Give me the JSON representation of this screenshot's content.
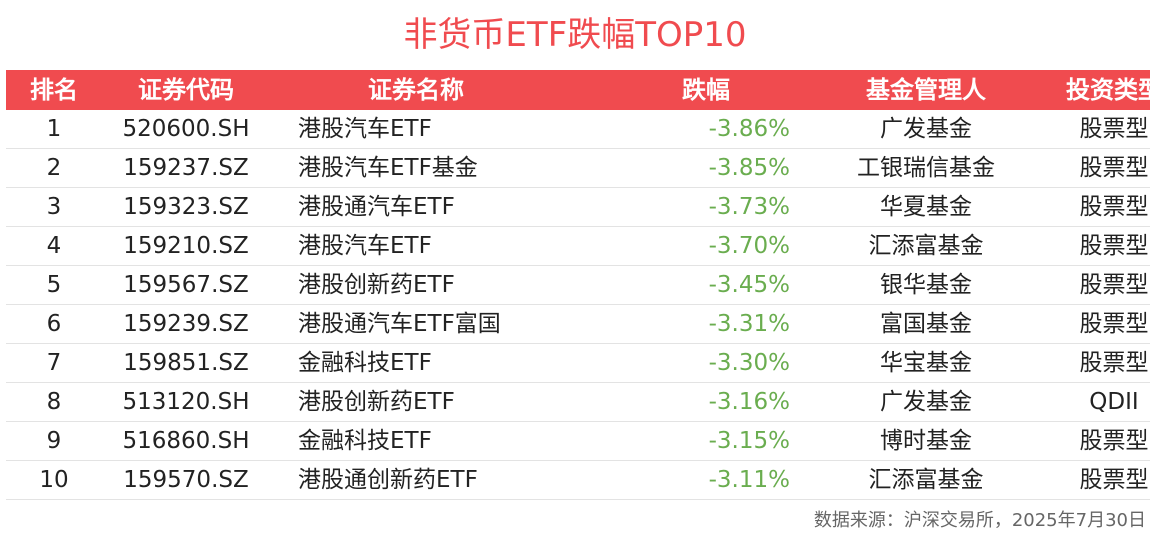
{
  "title": "非货币ETF跌幅TOP10",
  "headers": {
    "rank": "排名",
    "code": "证券代码",
    "name": "证券名称",
    "change": "跌幅",
    "manager": "基金管理人",
    "type": "投资类型"
  },
  "rows": [
    {
      "rank": "1",
      "code": "520600.SH",
      "name": "港股汽车ETF",
      "change": "-3.86%",
      "manager": "广发基金",
      "type": "股票型"
    },
    {
      "rank": "2",
      "code": "159237.SZ",
      "name": "港股汽车ETF基金",
      "change": "-3.85%",
      "manager": "工银瑞信基金",
      "type": "股票型"
    },
    {
      "rank": "3",
      "code": "159323.SZ",
      "name": "港股通汽车ETF",
      "change": "-3.73%",
      "manager": "华夏基金",
      "type": "股票型"
    },
    {
      "rank": "4",
      "code": "159210.SZ",
      "name": "港股汽车ETF",
      "change": "-3.70%",
      "manager": "汇添富基金",
      "type": "股票型"
    },
    {
      "rank": "5",
      "code": "159567.SZ",
      "name": "港股创新药ETF",
      "change": "-3.45%",
      "manager": "银华基金",
      "type": "股票型"
    },
    {
      "rank": "6",
      "code": "159239.SZ",
      "name": "港股通汽车ETF富国",
      "change": "-3.31%",
      "manager": "富国基金",
      "type": "股票型"
    },
    {
      "rank": "7",
      "code": "159851.SZ",
      "name": "金融科技ETF",
      "change": "-3.30%",
      "manager": "华宝基金",
      "type": "股票型"
    },
    {
      "rank": "8",
      "code": "513120.SH",
      "name": "港股创新药ETF",
      "change": "-3.16%",
      "manager": "广发基金",
      "type": "QDII"
    },
    {
      "rank": "9",
      "code": "516860.SH",
      "name": "金融科技ETF",
      "change": "-3.15%",
      "manager": "博时基金",
      "type": "股票型"
    },
    {
      "rank": "10",
      "code": "159570.SZ",
      "name": "港股通创新药ETF",
      "change": "-3.11%",
      "manager": "汇添富基金",
      "type": "股票型"
    }
  ],
  "source": "数据来源：沪深交易所，2025年7月30日",
  "colors": {
    "accent": "#f04b4f",
    "negative": "#6aad4f"
  }
}
